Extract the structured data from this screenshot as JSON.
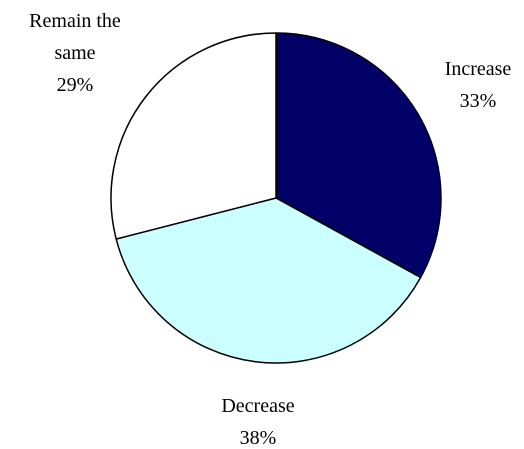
{
  "chart_data": {
    "type": "pie",
    "title": "",
    "slices": [
      {
        "label_lines": [
          "Increase"
        ],
        "percent_label": "33%",
        "value": 33,
        "color": "#000066"
      },
      {
        "label_lines": [
          "Decrease"
        ],
        "percent_label": "38%",
        "value": 38,
        "color": "#ccffff"
      },
      {
        "label_lines": [
          "Remain the",
          "same"
        ],
        "percent_label": "29%",
        "value": 29,
        "color": "#ffffff"
      }
    ],
    "start_angle": "12 o'clock",
    "direction": "clockwise",
    "slice_outline_color": "#000000",
    "legend": "none"
  }
}
